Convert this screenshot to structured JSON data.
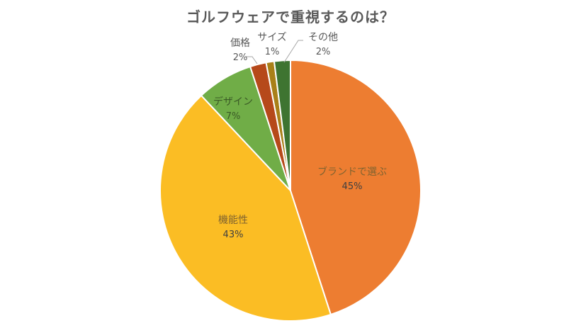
{
  "chart_data": {
    "type": "pie",
    "title": "ゴルフウェアで重視するのは？",
    "start_angle": "12 o'clock",
    "direction": "clockwise",
    "legend": "none (data labels on slices)",
    "slices": [
      {
        "label": "ブランドで選ぶ",
        "value": 45,
        "value_label": "45%",
        "color": "#ED7D31"
      },
      {
        "label": "機能性",
        "value": 43,
        "value_label": "43%",
        "color": "#FBBD24"
      },
      {
        "label": "デザイン",
        "value": 7,
        "value_label": "7%",
        "color": "#70AD47"
      },
      {
        "label": "価格",
        "value": 2,
        "value_label": "2%",
        "color": "#B6491A"
      },
      {
        "label": "サイズ",
        "value": 1,
        "value_label": "1%",
        "color": "#A98018"
      },
      {
        "label": "その他",
        "value": 2,
        "value_label": "2%",
        "color": "#3E7431"
      }
    ]
  }
}
